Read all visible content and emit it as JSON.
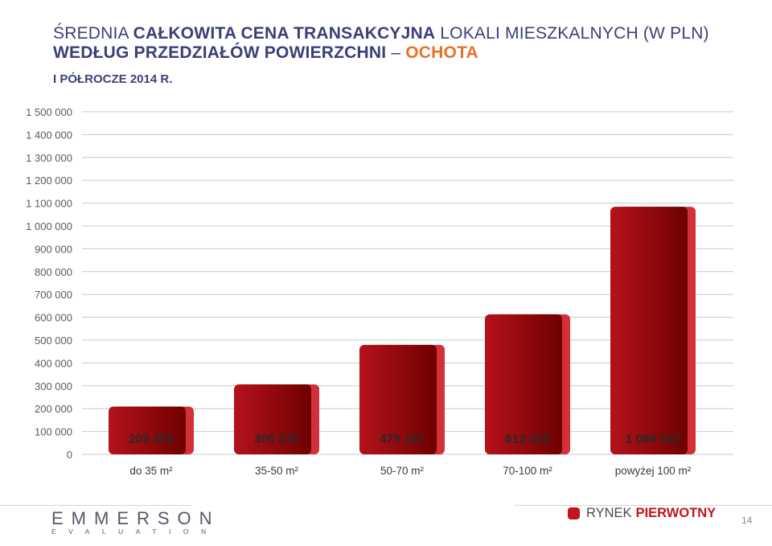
{
  "header": {
    "title_part1": "Średnia ",
    "title_part2": "całkowita cena transakcyjna",
    "title_part3": " lokali mieszkalnych (w PLN)",
    "title_part4": "według przedziałów powierzchni",
    "title_dash": " – ",
    "title_district": "Ochota",
    "subtitle": "I półrocze 2014 r."
  },
  "chart_data": {
    "type": "bar",
    "categories": [
      "do 35 m²",
      "35-50 m²",
      "50-70 m²",
      "70-100 m²",
      "powyżej 100 m²"
    ],
    "values": [
      209259,
      306376,
      479167,
      613302,
      1084022
    ],
    "value_labels": [
      "209 259",
      "306 376",
      "479 167",
      "613 302",
      "1 084 022"
    ],
    "ylim": [
      0,
      1500000
    ],
    "yticks": [
      0,
      100000,
      200000,
      300000,
      400000,
      500000,
      600000,
      700000,
      800000,
      900000,
      1000000,
      1100000,
      1200000,
      1300000,
      1400000,
      1500000
    ],
    "ytick_labels": [
      "0",
      "100 000",
      "200 000",
      "300 000",
      "400 000",
      "500 000",
      "600 000",
      "700 000",
      "800 000",
      "900 000",
      "1 000 000",
      "1 100 000",
      "1 200 000",
      "1 300 000",
      "1 400 000",
      "1 500 000"
    ],
    "grid": true,
    "colors": {
      "bar_dark": "#6e0000",
      "bar_mid": "#b5121b",
      "bar_side": "#d33039",
      "grid": "#c8c8c8"
    }
  },
  "footer": {
    "logo": "EMMERSON",
    "logo_sub": "EVALUATION",
    "rynek_label": "RYNEK",
    "rynek_strong": "PIERWOTNY",
    "page_number": "14"
  }
}
